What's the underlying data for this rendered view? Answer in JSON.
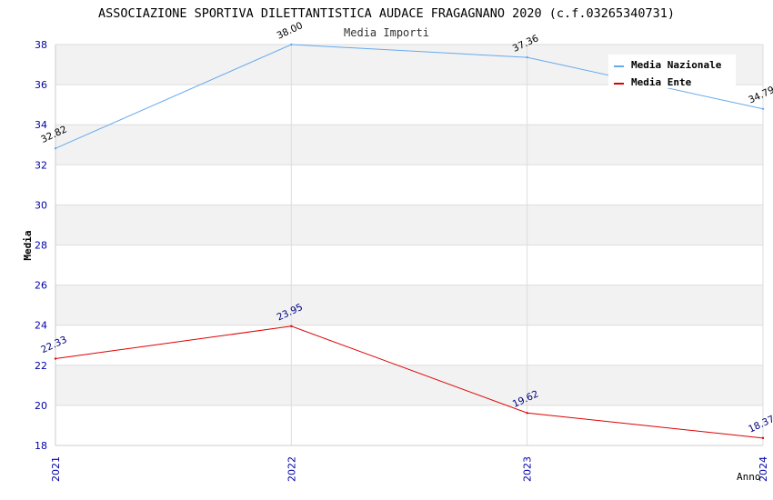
{
  "chart_data": {
    "type": "line",
    "title": "ASSOCIAZIONE SPORTIVA DILETTANTISTICA AUDACE FRAGAGNANO 2020 (c.f.03265340731)",
    "subtitle": "Media Importi",
    "xlabel": "Anno",
    "ylabel": "Media",
    "categories": [
      "2021",
      "2022",
      "2023",
      "2024"
    ],
    "ylim": [
      18,
      38
    ],
    "yticks": [
      "18",
      "20",
      "22",
      "24",
      "26",
      "28",
      "30",
      "32",
      "34",
      "36",
      "38"
    ],
    "grid": true,
    "legend_position": "top-right",
    "series": [
      {
        "name": "Media Nazionale",
        "color": "#66aaee",
        "label_color": "#000000",
        "values": [
          32.82,
          38.0,
          37.36,
          34.79
        ],
        "labels": [
          "32.82",
          "38.00",
          "37.36",
          "34.79"
        ]
      },
      {
        "name": "Media Ente",
        "color": "#dd0000",
        "label_color": "#000080",
        "values": [
          22.33,
          23.95,
          19.62,
          18.37
        ],
        "labels": [
          "22.33",
          "23.95",
          "19.62",
          "18.37"
        ]
      }
    ],
    "colors": {
      "band": "#f2f2f2",
      "grid": "#dddddd",
      "tick_text": "#0000aa",
      "title_text": "#000000",
      "subtitle_text": "#333333"
    }
  }
}
